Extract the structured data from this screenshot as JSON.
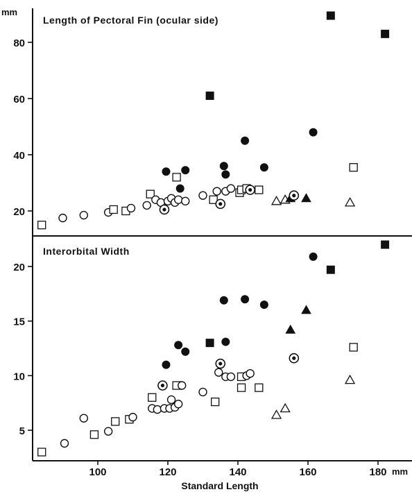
{
  "chart_data": [
    {
      "type": "scatter",
      "title": "Length of Pectoral Fin (ocular side)",
      "y_unit": "mm",
      "xlim": [
        80,
        188
      ],
      "ylim": [
        15,
        92
      ],
      "yticks": [
        20,
        40,
        60,
        80
      ],
      "legend": "none",
      "grid": false,
      "points": [
        {
          "x": 84,
          "y": 15,
          "marker": "open-square"
        },
        {
          "x": 90,
          "y": 17.5,
          "marker": "open-circle"
        },
        {
          "x": 96,
          "y": 18.5,
          "marker": "open-circle"
        },
        {
          "x": 103,
          "y": 19.5,
          "marker": "open-circle"
        },
        {
          "x": 104.5,
          "y": 20.5,
          "marker": "open-square"
        },
        {
          "x": 108,
          "y": 20,
          "marker": "open-square"
        },
        {
          "x": 109.5,
          "y": 21,
          "marker": "open-circle"
        },
        {
          "x": 114,
          "y": 22,
          "marker": "open-circle"
        },
        {
          "x": 115,
          "y": 26,
          "marker": "open-square"
        },
        {
          "x": 116.5,
          "y": 24,
          "marker": "open-circle"
        },
        {
          "x": 118,
          "y": 23,
          "marker": "open-circle"
        },
        {
          "x": 119,
          "y": 20.5,
          "marker": "dotted-circle"
        },
        {
          "x": 119.5,
          "y": 34,
          "marker": "filled-circle"
        },
        {
          "x": 120,
          "y": 23.5,
          "marker": "open-circle"
        },
        {
          "x": 121,
          "y": 24.5,
          "marker": "open-circle"
        },
        {
          "x": 122,
          "y": 23,
          "marker": "open-circle"
        },
        {
          "x": 122.5,
          "y": 32,
          "marker": "open-square"
        },
        {
          "x": 123,
          "y": 24,
          "marker": "open-circle"
        },
        {
          "x": 123.5,
          "y": 28,
          "marker": "filled-circle"
        },
        {
          "x": 125,
          "y": 23.5,
          "marker": "open-circle"
        },
        {
          "x": 125,
          "y": 34.5,
          "marker": "filled-circle"
        },
        {
          "x": 130,
          "y": 25.5,
          "marker": "open-circle"
        },
        {
          "x": 132,
          "y": 61,
          "marker": "filled-square"
        },
        {
          "x": 133,
          "y": 24,
          "marker": "open-square"
        },
        {
          "x": 134,
          "y": 27,
          "marker": "open-circle"
        },
        {
          "x": 135,
          "y": 22.5,
          "marker": "dotted-circle"
        },
        {
          "x": 136,
          "y": 36,
          "marker": "filled-circle"
        },
        {
          "x": 136.5,
          "y": 33,
          "marker": "filled-circle"
        },
        {
          "x": 136.5,
          "y": 27,
          "marker": "open-circle"
        },
        {
          "x": 138,
          "y": 28,
          "marker": "open-circle"
        },
        {
          "x": 140.5,
          "y": 26.5,
          "marker": "open-square"
        },
        {
          "x": 141,
          "y": 27.5,
          "marker": "open-square"
        },
        {
          "x": 142,
          "y": 45,
          "marker": "filled-circle"
        },
        {
          "x": 142.5,
          "y": 28,
          "marker": "open-square"
        },
        {
          "x": 143.5,
          "y": 27.5,
          "marker": "dotted-circle"
        },
        {
          "x": 146,
          "y": 27.5,
          "marker": "open-square"
        },
        {
          "x": 147.5,
          "y": 35.5,
          "marker": "filled-circle"
        },
        {
          "x": 151,
          "y": 23.5,
          "marker": "open-triangle"
        },
        {
          "x": 153.5,
          "y": 24,
          "marker": "open-triangle"
        },
        {
          "x": 155,
          "y": 24.5,
          "marker": "filled-triangle"
        },
        {
          "x": 156,
          "y": 25.5,
          "marker": "dotted-circle"
        },
        {
          "x": 159.5,
          "y": 24.5,
          "marker": "filled-triangle"
        },
        {
          "x": 161.5,
          "y": 48,
          "marker": "filled-circle"
        },
        {
          "x": 166.5,
          "y": 89.5,
          "marker": "filled-square"
        },
        {
          "x": 172,
          "y": 23,
          "marker": "open-triangle"
        },
        {
          "x": 173,
          "y": 35.5,
          "marker": "open-square"
        },
        {
          "x": 182,
          "y": 83,
          "marker": "filled-square"
        }
      ]
    },
    {
      "type": "scatter",
      "title": "Interorbital Width",
      "xlabel": "Standard Length",
      "x_unit": "mm",
      "xlim": [
        80,
        188
      ],
      "ylim": [
        2.5,
        22.5
      ],
      "xticks": [
        100,
        120,
        140,
        160,
        180
      ],
      "yticks": [
        5,
        10,
        15,
        20
      ],
      "legend": "none",
      "grid": false,
      "points": [
        {
          "x": 84,
          "y": 3,
          "marker": "open-square"
        },
        {
          "x": 90.5,
          "y": 3.8,
          "marker": "open-circle"
        },
        {
          "x": 96,
          "y": 6.1,
          "marker": "open-circle"
        },
        {
          "x": 99,
          "y": 4.6,
          "marker": "open-square"
        },
        {
          "x": 103,
          "y": 4.9,
          "marker": "open-circle"
        },
        {
          "x": 105,
          "y": 5.8,
          "marker": "open-square"
        },
        {
          "x": 109,
          "y": 6.0,
          "marker": "open-square"
        },
        {
          "x": 110,
          "y": 6.2,
          "marker": "open-circle"
        },
        {
          "x": 115.5,
          "y": 8.0,
          "marker": "open-square"
        },
        {
          "x": 115.5,
          "y": 7.0,
          "marker": "open-circle"
        },
        {
          "x": 117,
          "y": 6.9,
          "marker": "open-circle"
        },
        {
          "x": 118.5,
          "y": 9.1,
          "marker": "dotted-circle"
        },
        {
          "x": 119,
          "y": 7.0,
          "marker": "open-circle"
        },
        {
          "x": 119.5,
          "y": 11.0,
          "marker": "filled-circle"
        },
        {
          "x": 120.5,
          "y": 7.0,
          "marker": "open-circle"
        },
        {
          "x": 121,
          "y": 7.8,
          "marker": "open-circle"
        },
        {
          "x": 122,
          "y": 7.1,
          "marker": "open-circle"
        },
        {
          "x": 122.5,
          "y": 9.1,
          "marker": "open-square"
        },
        {
          "x": 123,
          "y": 7.4,
          "marker": "open-circle"
        },
        {
          "x": 123,
          "y": 12.8,
          "marker": "filled-circle"
        },
        {
          "x": 124,
          "y": 9.1,
          "marker": "open-circle"
        },
        {
          "x": 125,
          "y": 12.2,
          "marker": "filled-circle"
        },
        {
          "x": 130,
          "y": 8.5,
          "marker": "open-circle"
        },
        {
          "x": 132,
          "y": 13.0,
          "marker": "filled-square"
        },
        {
          "x": 133.5,
          "y": 7.6,
          "marker": "open-square"
        },
        {
          "x": 134.5,
          "y": 10.3,
          "marker": "open-circle"
        },
        {
          "x": 135,
          "y": 11.1,
          "marker": "dotted-circle"
        },
        {
          "x": 136,
          "y": 16.9,
          "marker": "filled-circle"
        },
        {
          "x": 136.5,
          "y": 9.9,
          "marker": "open-circle"
        },
        {
          "x": 136.5,
          "y": 13.1,
          "marker": "filled-circle"
        },
        {
          "x": 138,
          "y": 9.9,
          "marker": "open-circle"
        },
        {
          "x": 141,
          "y": 8.9,
          "marker": "open-square"
        },
        {
          "x": 141,
          "y": 9.9,
          "marker": "open-square"
        },
        {
          "x": 142,
          "y": 17.0,
          "marker": "filled-circle"
        },
        {
          "x": 142.5,
          "y": 10.0,
          "marker": "open-circle"
        },
        {
          "x": 143.5,
          "y": 10.2,
          "marker": "open-circle"
        },
        {
          "x": 146,
          "y": 8.9,
          "marker": "open-square"
        },
        {
          "x": 147.5,
          "y": 16.5,
          "marker": "filled-circle"
        },
        {
          "x": 151,
          "y": 6.4,
          "marker": "open-triangle"
        },
        {
          "x": 153.5,
          "y": 7.0,
          "marker": "open-triangle"
        },
        {
          "x": 155,
          "y": 14.2,
          "marker": "filled-triangle"
        },
        {
          "x": 156,
          "y": 11.6,
          "marker": "dotted-circle"
        },
        {
          "x": 159.5,
          "y": 16.0,
          "marker": "filled-triangle"
        },
        {
          "x": 161.5,
          "y": 20.9,
          "marker": "filled-circle"
        },
        {
          "x": 166.5,
          "y": 19.7,
          "marker": "filled-square"
        },
        {
          "x": 172,
          "y": 9.6,
          "marker": "open-triangle"
        },
        {
          "x": 173,
          "y": 12.6,
          "marker": "open-square"
        },
        {
          "x": 182,
          "y": 22.0,
          "marker": "filled-square"
        }
      ]
    }
  ]
}
